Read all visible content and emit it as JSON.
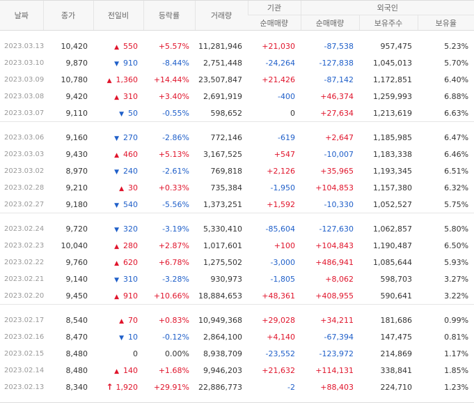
{
  "headers": {
    "date": "날짜",
    "close": "종가",
    "diff": "전일비",
    "rate": "등락률",
    "volume": "거래량",
    "institution": "기관",
    "foreign": "외국인",
    "inst_net": "순매매량",
    "foreign_net": "순매매량",
    "foreign_holdings": "보유주수",
    "foreign_ratio": "보유율"
  },
  "colors": {
    "up": "#e0142b",
    "down": "#1f5fc9"
  },
  "groups": [
    [
      {
        "date": "2023.03.13",
        "close": "10,420",
        "dir": "up",
        "diff": "550",
        "rate": "+5.57%",
        "volume": "11,281,946",
        "inst": "+21,030",
        "fnet": "-87,538",
        "fhold": "957,475",
        "fratio": "5.23%"
      },
      {
        "date": "2023.03.10",
        "close": "9,870",
        "dir": "down",
        "diff": "910",
        "rate": "-8.44%",
        "volume": "2,751,448",
        "inst": "-24,264",
        "fnet": "-127,838",
        "fhold": "1,045,013",
        "fratio": "5.70%"
      },
      {
        "date": "2023.03.09",
        "close": "10,780",
        "dir": "up",
        "diff": "1,360",
        "rate": "+14.44%",
        "volume": "23,507,847",
        "inst": "+21,426",
        "fnet": "-87,142",
        "fhold": "1,172,851",
        "fratio": "6.40%"
      },
      {
        "date": "2023.03.08",
        "close": "9,420",
        "dir": "up",
        "diff": "310",
        "rate": "+3.40%",
        "volume": "2,691,919",
        "inst": "-400",
        "fnet": "+46,374",
        "fhold": "1,259,993",
        "fratio": "6.88%"
      },
      {
        "date": "2023.03.07",
        "close": "9,110",
        "dir": "down",
        "diff": "50",
        "rate": "-0.55%",
        "volume": "598,652",
        "inst": "0",
        "fnet": "+27,634",
        "fhold": "1,213,619",
        "fratio": "6.63%"
      }
    ],
    [
      {
        "date": "2023.03.06",
        "close": "9,160",
        "dir": "down",
        "diff": "270",
        "rate": "-2.86%",
        "volume": "772,146",
        "inst": "-619",
        "fnet": "+2,647",
        "fhold": "1,185,985",
        "fratio": "6.47%"
      },
      {
        "date": "2023.03.03",
        "close": "9,430",
        "dir": "up",
        "diff": "460",
        "rate": "+5.13%",
        "volume": "3,167,525",
        "inst": "+547",
        "fnet": "-10,007",
        "fhold": "1,183,338",
        "fratio": "6.46%"
      },
      {
        "date": "2023.03.02",
        "close": "8,970",
        "dir": "down",
        "diff": "240",
        "rate": "-2.61%",
        "volume": "769,818",
        "inst": "+2,126",
        "fnet": "+35,965",
        "fhold": "1,193,345",
        "fratio": "6.51%"
      },
      {
        "date": "2023.02.28",
        "close": "9,210",
        "dir": "up",
        "diff": "30",
        "rate": "+0.33%",
        "volume": "735,384",
        "inst": "-1,950",
        "fnet": "+104,853",
        "fhold": "1,157,380",
        "fratio": "6.32%"
      },
      {
        "date": "2023.02.27",
        "close": "9,180",
        "dir": "down",
        "diff": "540",
        "rate": "-5.56%",
        "volume": "1,373,251",
        "inst": "+1,592",
        "fnet": "-10,330",
        "fhold": "1,052,527",
        "fratio": "5.75%"
      }
    ],
    [
      {
        "date": "2023.02.24",
        "close": "9,720",
        "dir": "down",
        "diff": "320",
        "rate": "-3.19%",
        "volume": "5,330,410",
        "inst": "-85,604",
        "fnet": "-127,630",
        "fhold": "1,062,857",
        "fratio": "5.80%"
      },
      {
        "date": "2023.02.23",
        "close": "10,040",
        "dir": "up",
        "diff": "280",
        "rate": "+2.87%",
        "volume": "1,017,601",
        "inst": "+100",
        "fnet": "+104,843",
        "fhold": "1,190,487",
        "fratio": "6.50%"
      },
      {
        "date": "2023.02.22",
        "close": "9,760",
        "dir": "up",
        "diff": "620",
        "rate": "+6.78%",
        "volume": "1,275,502",
        "inst": "-3,000",
        "fnet": "+486,941",
        "fhold": "1,085,644",
        "fratio": "5.93%"
      },
      {
        "date": "2023.02.21",
        "close": "9,140",
        "dir": "down",
        "diff": "310",
        "rate": "-3.28%",
        "volume": "930,973",
        "inst": "-1,805",
        "fnet": "+8,062",
        "fhold": "598,703",
        "fratio": "3.27%"
      },
      {
        "date": "2023.02.20",
        "close": "9,450",
        "dir": "up",
        "diff": "910",
        "rate": "+10.66%",
        "volume": "18,884,653",
        "inst": "+48,361",
        "fnet": "+408,955",
        "fhold": "590,641",
        "fratio": "3.22%"
      }
    ],
    [
      {
        "date": "2023.02.17",
        "close": "8,540",
        "dir": "up",
        "diff": "70",
        "rate": "+0.83%",
        "volume": "10,949,368",
        "inst": "+29,028",
        "fnet": "+34,211",
        "fhold": "181,686",
        "fratio": "0.99%"
      },
      {
        "date": "2023.02.16",
        "close": "8,470",
        "dir": "down",
        "diff": "10",
        "rate": "-0.12%",
        "volume": "2,864,100",
        "inst": "+4,140",
        "fnet": "-67,394",
        "fhold": "147,475",
        "fratio": "0.81%"
      },
      {
        "date": "2023.02.15",
        "close": "8,480",
        "dir": "flat",
        "diff": "0",
        "rate": "0.00%",
        "volume": "8,938,709",
        "inst": "-23,552",
        "fnet": "-123,972",
        "fhold": "214,869",
        "fratio": "1.17%"
      },
      {
        "date": "2023.02.14",
        "close": "8,480",
        "dir": "up",
        "diff": "140",
        "rate": "+1.68%",
        "volume": "9,946,203",
        "inst": "+21,632",
        "fnet": "+114,131",
        "fhold": "338,841",
        "fratio": "1.85%"
      },
      {
        "date": "2023.02.13",
        "close": "8,340",
        "dir": "limitup",
        "diff": "1,920",
        "rate": "+29.91%",
        "volume": "22,886,773",
        "inst": "-2",
        "fnet": "+88,403",
        "fhold": "224,710",
        "fratio": "1.23%"
      }
    ]
  ]
}
